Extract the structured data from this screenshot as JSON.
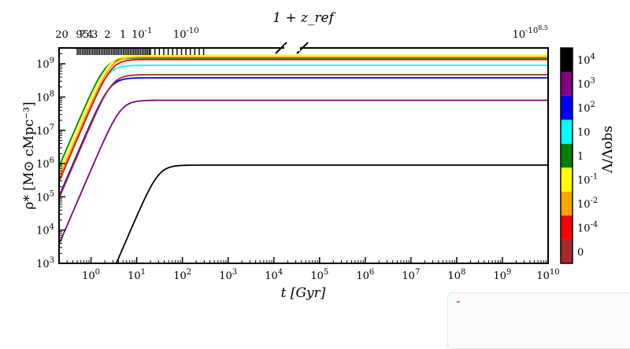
{
  "chart_data": {
    "type": "line",
    "xscale": "log",
    "yscale": "log",
    "xlim": [
      0.2,
      10000000000
    ],
    "ylim": [
      1000,
      3000000000
    ],
    "xlabel": "t [Gyr]",
    "ylabel": "ρ* [M⊙ cMpc⁻³]",
    "top_axis_label": "1 + z_ref",
    "x_ticks": [
      {
        "value": 1,
        "label": "10^0"
      },
      {
        "value": 10,
        "label": "10^1"
      },
      {
        "value": 100,
        "label": "10^2"
      },
      {
        "value": 1000,
        "label": "10^3"
      },
      {
        "value": 10000,
        "label": "10^4"
      },
      {
        "value": 100000,
        "label": "10^5"
      },
      {
        "value": 1000000,
        "label": "10^6"
      },
      {
        "value": 10000000,
        "label": "10^7"
      },
      {
        "value": 100000000,
        "label": "10^8"
      },
      {
        "value": 1000000000,
        "label": "10^9"
      },
      {
        "value": 10000000000,
        "label": "10^10"
      }
    ],
    "y_ticks": [
      {
        "value": 1000,
        "label": "10^3"
      },
      {
        "value": 10000,
        "label": "10^4"
      },
      {
        "value": 100000,
        "label": "10^5"
      },
      {
        "value": 1000000,
        "label": "10^6"
      },
      {
        "value": 10000000,
        "label": "10^7"
      },
      {
        "value": 100000000,
        "label": "10^8"
      },
      {
        "value": 1000000000,
        "label": "10^9"
      }
    ],
    "top_ticks": [
      {
        "label": "20",
        "t": 0.23
      },
      {
        "label": "9",
        "t": 0.55
      },
      {
        "label": "7",
        "t": 0.64
      },
      {
        "label": "5",
        "t": 0.78
      },
      {
        "label": "4",
        "t": 0.95
      },
      {
        "label": "3",
        "t": 1.2
      },
      {
        "label": "2",
        "t": 2.3
      },
      {
        "label": "1",
        "t": 5.0
      },
      {
        "label": "10^-1",
        "t": 13
      },
      {
        "label": "10^-10",
        "t": 120
      },
      {
        "label": "10^-10^8.5",
        "t": 10000000000
      }
    ],
    "colorbar": {
      "label": "Λ/Λobs",
      "entries": [
        {
          "label": "0",
          "color": "#a52a2a"
        },
        {
          "label": "10^-4",
          "color": "#ff0000"
        },
        {
          "label": "10^-2",
          "color": "#ffa500"
        },
        {
          "label": "10^-1",
          "color": "#ffff00"
        },
        {
          "label": "1",
          "color": "#008000"
        },
        {
          "label": "10",
          "color": "#00ffff"
        },
        {
          "label": "10^2",
          "color": "#0000ff"
        },
        {
          "label": "10^3",
          "color": "#800080"
        },
        {
          "label": "10^4",
          "color": "#000000"
        }
      ]
    },
    "series": [
      {
        "color": "#000000",
        "t50": 30,
        "final": 900000
      },
      {
        "color": "#800080",
        "t50": 4.5,
        "final": 80000000
      },
      {
        "color": "#0000ff",
        "t50": 2.6,
        "final": 380000000
      },
      {
        "color": "#00ffff",
        "t50": 2.3,
        "final": 900000000
      },
      {
        "color": "#008000",
        "t50": 2.1,
        "final": 1500000000
      },
      {
        "color": "#ffff00",
        "t50": 2.5,
        "final": 1800000000
      },
      {
        "color": "#ffa500",
        "t50": 2.7,
        "final": 1600000000
      },
      {
        "color": "#ff0000",
        "t50": 2.8,
        "final": 1350000000
      },
      {
        "color": "#a52a2a",
        "t50": 2.9,
        "final": 470000000
      }
    ]
  }
}
